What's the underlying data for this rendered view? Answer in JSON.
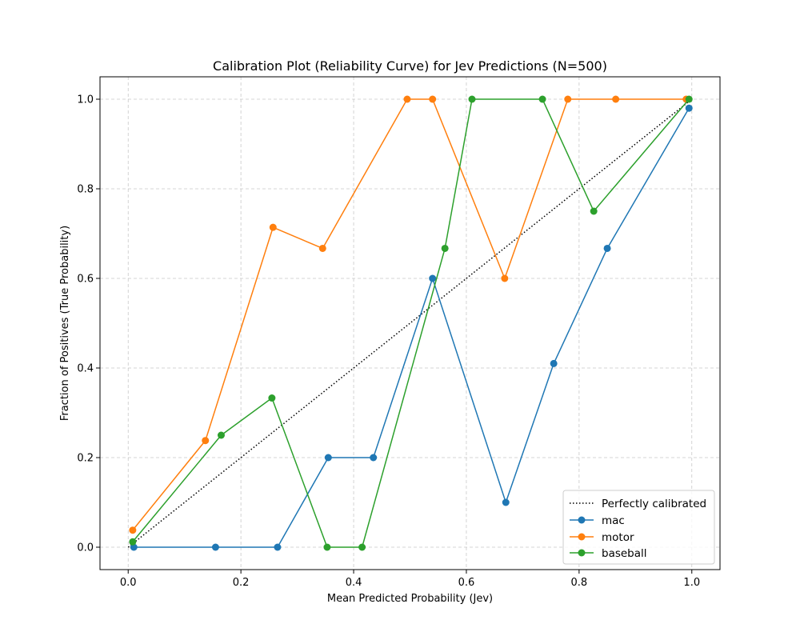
{
  "chart_data": {
    "type": "line",
    "title": "Calibration Plot (Reliability Curve) for Jev Predictions (N=500)",
    "xlabel": "Mean Predicted Probability (Jev)",
    "ylabel": "Fraction of Positives (True Probability)",
    "xlim": [
      -0.05,
      1.05
    ],
    "ylim": [
      -0.05,
      1.05
    ],
    "xticks": [
      "0.0",
      "0.2",
      "0.4",
      "0.6",
      "0.8",
      "1.0"
    ],
    "yticks": [
      "0.0",
      "0.2",
      "0.4",
      "0.6",
      "0.8",
      "1.0"
    ],
    "grid": true,
    "legend_position": "lower-right",
    "reference": {
      "name": "Perfectly calibrated",
      "x": [
        0,
        1
      ],
      "y": [
        0,
        1
      ],
      "color": "#000000",
      "style": "dotted"
    },
    "series": [
      {
        "name": "mac",
        "color": "#1f77b4",
        "x": [
          0.01,
          0.155,
          0.265,
          0.355,
          0.435,
          0.54,
          0.67,
          0.755,
          0.85,
          0.995
        ],
        "y": [
          0.0,
          0.0,
          0.0,
          0.2,
          0.2,
          0.6,
          0.1,
          0.41,
          0.667,
          0.98
        ]
      },
      {
        "name": "motor",
        "color": "#ff7f0e",
        "x": [
          0.008,
          0.137,
          0.257,
          0.345,
          0.495,
          0.54,
          0.668,
          0.78,
          0.865,
          0.99
        ],
        "y": [
          0.038,
          0.238,
          0.714,
          0.667,
          1.0,
          1.0,
          0.6,
          1.0,
          1.0,
          1.0
        ]
      },
      {
        "name": "baseball",
        "color": "#2ca02c",
        "x": [
          0.008,
          0.165,
          0.255,
          0.353,
          0.415,
          0.562,
          0.61,
          0.735,
          0.826,
          0.995
        ],
        "y": [
          0.012,
          0.25,
          0.333,
          0.0,
          0.0,
          0.667,
          1.0,
          1.0,
          0.75,
          1.0
        ]
      }
    ]
  }
}
